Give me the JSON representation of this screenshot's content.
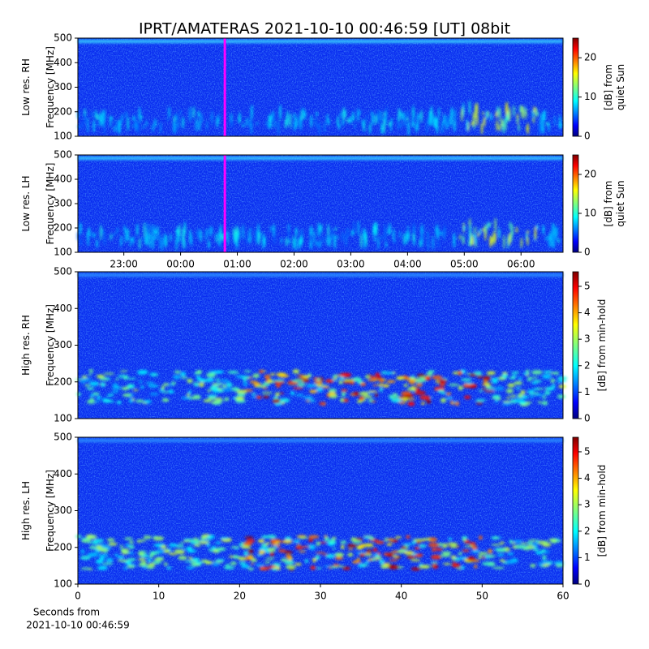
{
  "chart_data": [
    {
      "type": "heatmap",
      "title": "IPRT/AMATERAS 2021-10-10 00:46:59 [UT]   08bit",
      "ylabel": [
        "Low res. RH",
        "Frequency [MHz]"
      ],
      "ylim": [
        100,
        500
      ],
      "yticks": [
        100,
        200,
        300,
        400,
        500
      ],
      "xlim": [
        22.19,
        30.74
      ],
      "marker_x": 24.78,
      "marker_color": "#ff00ff",
      "colorbar_label": [
        "[dB] from",
        "quiet Sun"
      ],
      "clim": [
        0,
        25
      ],
      "cticks": [
        0,
        10,
        20
      ]
    },
    {
      "type": "heatmap",
      "ylabel": [
        "Low res. LH",
        "Frequency [MHz]"
      ],
      "ylim": [
        100,
        500
      ],
      "yticks": [
        100,
        200,
        300,
        400,
        500
      ],
      "xlim": [
        22.19,
        30.74
      ],
      "marker_x": 24.78,
      "marker_color": "#ff00ff",
      "xticks": [
        {
          "value": 23,
          "label": "23:00"
        },
        {
          "value": 24,
          "label": "00:00"
        },
        {
          "value": 25,
          "label": "01:00"
        },
        {
          "value": 26,
          "label": "02:00"
        },
        {
          "value": 27,
          "label": "03:00"
        },
        {
          "value": 28,
          "label": "04:00"
        },
        {
          "value": 29,
          "label": "05:00"
        },
        {
          "value": 30,
          "label": "06:00"
        }
      ],
      "colorbar_label": [
        "[dB] from",
        "quiet Sun"
      ],
      "clim": [
        0,
        25
      ],
      "cticks": [
        0,
        10,
        20
      ]
    },
    {
      "type": "heatmap",
      "ylabel": [
        "High res. RH",
        "Frequency [MHz]"
      ],
      "ylim": [
        100,
        500
      ],
      "yticks": [
        100,
        200,
        300,
        400,
        500
      ],
      "xlim": [
        0,
        60
      ],
      "colorbar_label": [
        "[dB] from min-hold"
      ],
      "clim": [
        0,
        5.55
      ],
      "cticks": [
        0,
        1,
        2,
        3,
        4,
        5
      ]
    },
    {
      "type": "heatmap",
      "ylabel": [
        "High res. LH",
        "Frequency [MHz]"
      ],
      "ylim": [
        100,
        500
      ],
      "yticks": [
        100,
        200,
        300,
        400,
        500
      ],
      "xlim": [
        0,
        60
      ],
      "xticks": [
        0,
        10,
        20,
        30,
        40,
        50,
        60
      ],
      "xlabel": [
        "Seconds from",
        "2021-10-10 00:46:59"
      ],
      "colorbar_label": [
        "[dB] from min-hold"
      ],
      "clim": [
        0,
        5.55
      ],
      "cticks": [
        0,
        1,
        2,
        3,
        4,
        5
      ]
    }
  ]
}
